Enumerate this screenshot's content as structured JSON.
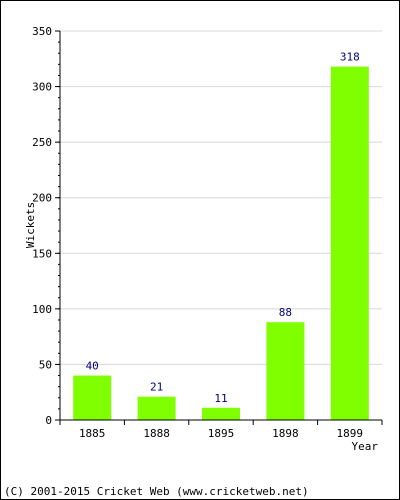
{
  "chart_data": {
    "type": "bar",
    "title": "",
    "xlabel": "Year",
    "ylabel": "Wickets",
    "categories": [
      "1885",
      "1888",
      "1895",
      "1898",
      "1899"
    ],
    "values": [
      40,
      21,
      11,
      88,
      318
    ],
    "ylim": [
      0,
      350
    ],
    "yticks": [
      0,
      50,
      100,
      150,
      200,
      250,
      300,
      350
    ],
    "grid": true,
    "colors": {
      "bar": "#80ff00",
      "label": "#000080",
      "grid": "#d8d8d8",
      "axis": "#000000"
    }
  },
  "footer": {
    "copyright": "(C) 2001-2015 Cricket Web (www.cricketweb.net)"
  }
}
